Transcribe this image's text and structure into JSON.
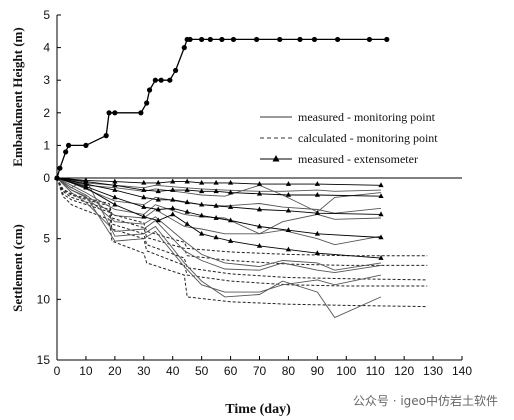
{
  "chart_data": {
    "type": "line",
    "xlabel": "Time (day)",
    "ylabel_top": "Embankment Height (m)",
    "ylabel_bottom": "Settlement (cm)",
    "xlim": [
      0,
      140
    ],
    "x_ticks": [
      0,
      10,
      20,
      30,
      40,
      50,
      60,
      70,
      80,
      90,
      100,
      110,
      120,
      130,
      140
    ],
    "top_ylim": [
      0,
      5
    ],
    "top_y_ticks": [
      0,
      1,
      2,
      3,
      4,
      5
    ],
    "bottom_ylim": [
      0,
      15
    ],
    "bottom_y_ticks": [
      5,
      10,
      15
    ],
    "legend": {
      "position": "top-right",
      "entries": [
        "measured - monitoring point",
        "calculated - monitoring point",
        "measured - extensometer"
      ]
    },
    "embankment_height": {
      "x": [
        0,
        1,
        3,
        4,
        10,
        17,
        18,
        20,
        29,
        31,
        32,
        34,
        36,
        39,
        41,
        44,
        45,
        46,
        50,
        53,
        57,
        61,
        69,
        77,
        84,
        89,
        97,
        108,
        114
      ],
      "y": [
        0,
        0.3,
        0.8,
        1.0,
        1.0,
        1.3,
        2.0,
        2.0,
        2.0,
        2.3,
        2.7,
        3.0,
        3.0,
        3.0,
        3.3,
        4.0,
        4.25,
        4.25,
        4.25,
        4.25,
        4.25,
        4.25,
        4.25,
        4.25,
        4.25,
        4.25,
        4.25,
        4.25,
        4.25
      ]
    },
    "measured_monitoring_points": [
      {
        "x": [
          0,
          5,
          10,
          20,
          30,
          34,
          44,
          50,
          58,
          70,
          78,
          90,
          96,
          112
        ],
        "y": [
          0,
          0.8,
          0.1,
          4.8,
          4.6,
          4.0,
          7.0,
          8.5,
          9.8,
          9.6,
          8.5,
          9.4,
          11.5,
          9.8
        ]
      },
      {
        "x": [
          0,
          5,
          10,
          20,
          30,
          34,
          44,
          50,
          58,
          70,
          78,
          90,
          96,
          112
        ],
        "y": [
          0,
          1.0,
          1.5,
          5.2,
          5.0,
          4.4,
          7.3,
          8.8,
          9.4,
          9.4,
          8.8,
          8.4,
          8.8,
          8.0
        ]
      },
      {
        "x": [
          0,
          5,
          10,
          20,
          30,
          34,
          44,
          50,
          58,
          70,
          78,
          90,
          96,
          112
        ],
        "y": [
          0,
          1.2,
          2.0,
          4.4,
          4.2,
          3.5,
          6.0,
          6.8,
          7.5,
          7.6,
          7.0,
          7.6,
          7.8,
          7.2
        ]
      },
      {
        "x": [
          0,
          5,
          10,
          20,
          30,
          34,
          44,
          50,
          58,
          70,
          78,
          90,
          96,
          112
        ],
        "y": [
          0,
          1.0,
          1.6,
          3.6,
          3.8,
          3.2,
          5.2,
          6.3,
          7.0,
          7.3,
          6.8,
          7.0,
          7.6,
          7.0
        ]
      },
      {
        "x": [
          0,
          5,
          10,
          20,
          30,
          34,
          44,
          50,
          58,
          70,
          78,
          90,
          96,
          112
        ],
        "y": [
          0,
          0.8,
          1.4,
          3.1,
          3.3,
          2.6,
          4.0,
          4.2,
          4.6,
          4.6,
          4.3,
          5.0,
          5.5,
          4.8
        ]
      },
      {
        "x": [
          0,
          5,
          10,
          20,
          30,
          34,
          44,
          50,
          58,
          70,
          78,
          90,
          96,
          112
        ],
        "y": [
          0,
          0.6,
          1.2,
          2.6,
          3.0,
          2.2,
          3.0,
          3.2,
          3.3,
          4.6,
          3.6,
          3.0,
          3.4,
          3.3
        ]
      },
      {
        "x": [
          0,
          5,
          10,
          20,
          30,
          34,
          44,
          50,
          58,
          70,
          78,
          90,
          96,
          112
        ],
        "y": [
          0,
          0.4,
          0.9,
          1.9,
          2.2,
          1.6,
          2.0,
          2.2,
          2.3,
          2.1,
          2.4,
          2.6,
          2.9,
          2.5
        ]
      },
      {
        "x": [
          0,
          5,
          10,
          20,
          30,
          34,
          44,
          50,
          58,
          70,
          78,
          90,
          96,
          112
        ],
        "y": [
          0,
          0.3,
          0.6,
          0.8,
          1.1,
          0.9,
          1.2,
          1.4,
          1.5,
          0.6,
          1.4,
          2.8,
          1.6,
          1.2
        ]
      },
      {
        "x": [
          0,
          5,
          10,
          20,
          30,
          34,
          44,
          50,
          58,
          70,
          78,
          90,
          96,
          112
        ],
        "y": [
          0,
          0.2,
          0.4,
          0.6,
          0.8,
          0.6,
          0.8,
          0.9,
          1.0,
          1.1,
          1.1,
          1.0,
          1.1,
          1.0
        ]
      }
    ],
    "calculated_monitoring_points": [
      {
        "x": [
          0,
          2,
          5,
          9,
          18,
          19,
          30,
          31,
          44,
          45,
          60,
          80,
          100,
          128
        ],
        "y": [
          0,
          1.5,
          2.2,
          2.6,
          3.4,
          5.2,
          6.2,
          7.0,
          8.0,
          9.8,
          10.2,
          10.4,
          10.5,
          10.6
        ]
      },
      {
        "x": [
          0,
          2,
          5,
          9,
          18,
          19,
          30,
          31,
          44,
          45,
          60,
          80,
          100,
          128
        ],
        "y": [
          0,
          1.3,
          1.8,
          2.1,
          2.8,
          4.2,
          5.0,
          6.0,
          7.2,
          8.0,
          8.5,
          8.8,
          8.9,
          8.9
        ]
      },
      {
        "x": [
          0,
          2,
          5,
          9,
          18,
          19,
          30,
          31,
          44,
          45,
          60,
          80,
          100,
          128
        ],
        "y": [
          0,
          1.1,
          1.6,
          1.9,
          2.6,
          3.8,
          4.6,
          5.5,
          6.6,
          7.4,
          7.9,
          8.2,
          8.3,
          8.4
        ]
      },
      {
        "x": [
          0,
          2,
          5,
          9,
          18,
          19,
          30,
          31,
          44,
          45,
          60,
          80,
          100,
          128
        ],
        "y": [
          0,
          1.0,
          1.4,
          1.7,
          2.3,
          3.3,
          4.1,
          4.9,
          5.8,
          6.4,
          6.8,
          7.1,
          7.2,
          7.2
        ]
      },
      {
        "x": [
          0,
          2,
          5,
          9,
          18,
          19,
          30,
          31,
          44,
          45,
          60,
          80,
          100,
          128
        ],
        "y": [
          0,
          0.9,
          1.3,
          1.6,
          2.1,
          3.0,
          3.7,
          4.4,
          5.3,
          5.8,
          6.1,
          6.3,
          6.4,
          6.4
        ]
      }
    ],
    "measured_extensometers": [
      {
        "x": [
          0,
          10,
          20,
          30,
          35,
          40,
          45,
          50,
          55,
          60,
          70,
          80,
          90,
          112
        ],
        "y": [
          0,
          0.2,
          0.3,
          0.4,
          0.4,
          0.3,
          0.3,
          0.4,
          0.4,
          0.4,
          0.5,
          0.5,
          0.5,
          0.6
        ]
      },
      {
        "x": [
          0,
          10,
          20,
          30,
          35,
          40,
          45,
          50,
          55,
          60,
          70,
          80,
          90,
          112
        ],
        "y": [
          0,
          0.3,
          0.6,
          1.0,
          1.1,
          1.0,
          1.0,
          1.1,
          1.1,
          1.2,
          1.3,
          1.4,
          1.4,
          1.5
        ]
      },
      {
        "x": [
          0,
          10,
          20,
          30,
          35,
          40,
          45,
          50,
          55,
          60,
          70,
          80,
          90,
          112
        ],
        "y": [
          0,
          0.5,
          1.0,
          1.6,
          1.8,
          1.8,
          2.0,
          2.2,
          2.3,
          2.4,
          2.6,
          2.7,
          2.9,
          3.0
        ]
      },
      {
        "x": [
          0,
          10,
          20,
          30,
          35,
          40,
          45,
          50,
          55,
          60,
          70,
          80,
          90,
          112
        ],
        "y": [
          0,
          0.7,
          1.6,
          2.4,
          2.6,
          2.5,
          2.8,
          3.1,
          3.3,
          3.5,
          4.0,
          4.3,
          4.6,
          4.9
        ]
      },
      {
        "x": [
          0,
          10,
          20,
          30,
          35,
          40,
          45,
          50,
          55,
          60,
          70,
          80,
          90,
          112
        ],
        "y": [
          0,
          0.8,
          2.2,
          3.2,
          3.5,
          3.0,
          3.8,
          4.6,
          4.9,
          5.2,
          5.6,
          5.9,
          6.2,
          6.6
        ]
      }
    ]
  },
  "watermark": "公众号 · igeo中仿岩土软件"
}
